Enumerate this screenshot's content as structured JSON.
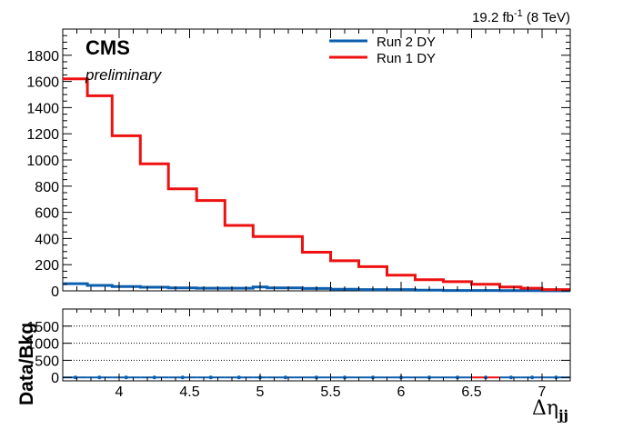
{
  "annotations": {
    "cms": "CMS",
    "preliminary": "preliminary",
    "lumi": "19.2 fb",
    "lumi_exp": "-1",
    "energy": " (8 TeV)"
  },
  "chart_data": [
    {
      "type": "line",
      "title": "",
      "xlabel": "Δη",
      "xlabel_sub": "jj",
      "ylabel": "",
      "xlim": [
        3.6,
        7.2
      ],
      "ylim": [
        0,
        2000
      ],
      "x_ticks": [
        "4",
        "4.5",
        "5",
        "5.5",
        "6",
        "6.5",
        "7"
      ],
      "y_ticks": [
        "0",
        "200",
        "400",
        "600",
        "800",
        "1000",
        "1200",
        "1400",
        "1600",
        "1800"
      ],
      "grid": false,
      "legend_position": "top-center",
      "bin_edges": [
        3.6,
        3.775,
        3.95,
        4.15,
        4.35,
        4.55,
        4.75,
        4.95,
        5.05,
        5.3,
        5.5,
        5.7,
        5.9,
        6.1,
        6.3,
        6.5,
        6.7,
        6.85,
        7.0,
        7.2
      ],
      "series": [
        {
          "name": "Run 2 DY",
          "color": "#0b5fae",
          "values": [
            55,
            42,
            33,
            28,
            22,
            20,
            20,
            30,
            22,
            18,
            12,
            10,
            10,
            5,
            3,
            3,
            2,
            2,
            1
          ]
        },
        {
          "name": "Run 1 DY",
          "color": "#ee1111",
          "values": [
            1620,
            1490,
            1185,
            970,
            780,
            690,
            500,
            415,
            415,
            295,
            230,
            185,
            120,
            85,
            70,
            50,
            30,
            20,
            10
          ]
        }
      ]
    },
    {
      "type": "scatter",
      "title": "",
      "xlabel": "",
      "ylabel": "Data/Bkg",
      "xlim": [
        3.6,
        7.2
      ],
      "ylim": [
        -100,
        2000
      ],
      "x_ticks": [
        "4",
        "4.5",
        "5",
        "5.5",
        "6",
        "6.5",
        "7"
      ],
      "y_ticks": [
        "0",
        "500",
        "1000",
        "1500"
      ],
      "grid": true,
      "bin_edges": [
        3.6,
        3.775,
        3.95,
        4.15,
        4.35,
        4.55,
        4.75,
        4.95,
        5.05,
        5.3,
        5.5,
        5.7,
        5.9,
        6.1,
        6.3,
        6.5,
        6.7,
        6.85,
        7.0,
        7.2
      ],
      "points": [
        {
          "x": 3.69,
          "y": 0
        },
        {
          "x": 3.86,
          "y": 0
        },
        {
          "x": 4.05,
          "y": 0
        },
        {
          "x": 4.25,
          "y": 0
        },
        {
          "x": 4.45,
          "y": 0
        },
        {
          "x": 4.65,
          "y": 0
        },
        {
          "x": 4.85,
          "y": 0
        },
        {
          "x": 5.0,
          "y": 0
        },
        {
          "x": 5.18,
          "y": 0
        },
        {
          "x": 5.4,
          "y": 0
        },
        {
          "x": 5.6,
          "y": 0
        },
        {
          "x": 5.8,
          "y": 0
        },
        {
          "x": 6.0,
          "y": 0
        },
        {
          "x": 6.2,
          "y": 0
        },
        {
          "x": 6.4,
          "y": 0
        },
        {
          "x": 6.6,
          "y": 0
        },
        {
          "x": 6.78,
          "y": 0
        },
        {
          "x": 6.93,
          "y": 0
        },
        {
          "x": 7.1,
          "y": 0
        }
      ]
    }
  ]
}
